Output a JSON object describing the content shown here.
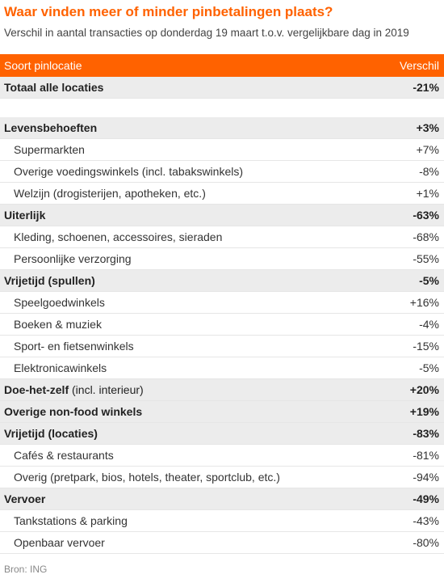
{
  "title": "Waar vinden meer of minder pinbetalingen plaats?",
  "subtitle": "Verschil in aantal transacties  op donderdag 19 maart t.o.v. vergelijkbare dag in 2019",
  "table": {
    "header": [
      "Soort pinlocatie",
      "Verschil"
    ],
    "total": {
      "label": "Totaal alle locaties",
      "value": "-21%"
    },
    "groups": [
      {
        "label": "Levensbehoeften",
        "value": "+3%",
        "items": [
          {
            "label": "Supermarkten",
            "value": "+7%"
          },
          {
            "label": "Overige voedingswinkels (incl. tabakswinkels)",
            "value": "-8%"
          },
          {
            "label": "Welzijn (drogisterijen, apotheken, etc.)",
            "value": "+1%"
          }
        ]
      },
      {
        "label": "Uiterlijk",
        "value": "-63%",
        "items": [
          {
            "label": "Kleding, schoenen, accessoires, sieraden",
            "value": "-68%"
          },
          {
            "label": "Persoonlijke verzorging",
            "value": "-55%"
          }
        ]
      },
      {
        "label": "Vrijetijd (spullen)",
        "value": "-5%",
        "items": [
          {
            "label": "Speelgoedwinkels",
            "value": "+16%"
          },
          {
            "label": "Boeken & muziek",
            "value": "-4%"
          },
          {
            "label": "Sport- en fietsenwinkels",
            "value": "-15%"
          },
          {
            "label": "Elektronicawinkels",
            "value": "-5%"
          }
        ]
      },
      {
        "label": "Doe-het-zelf",
        "note": " (incl. interieur)",
        "value": "+20%",
        "items": []
      },
      {
        "label": "Overige non-food winkels",
        "value": "+19%",
        "items": []
      },
      {
        "label": "Vrijetijd (locaties)",
        "value": "-83%",
        "items": [
          {
            "label": "Cafés & restaurants",
            "value": "-81%"
          },
          {
            "label": "Overig (pretpark, bios, hotels, theater, sportclub, etc.)",
            "value": "-94%"
          }
        ]
      },
      {
        "label": "Vervoer",
        "value": "-49%",
        "items": [
          {
            "label": "Tankstations & parking",
            "value": "-43%"
          },
          {
            "label": "Openbaar vervoer",
            "value": "-80%"
          }
        ]
      }
    ]
  },
  "source": "Bron: ING"
}
